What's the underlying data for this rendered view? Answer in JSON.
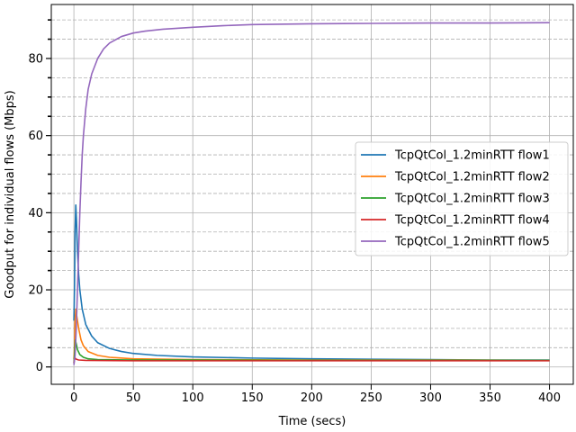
{
  "chart_data": {
    "type": "line",
    "title": "",
    "xlabel": "Time (secs)",
    "ylabel": "Goodput for individual flows (Mbps)",
    "xlim": [
      -19,
      420
    ],
    "ylim": [
      -4.5,
      94
    ],
    "x_ticks": [
      0,
      50,
      100,
      150,
      200,
      250,
      300,
      350,
      400
    ],
    "y_ticks": [
      0,
      20,
      40,
      60,
      80
    ],
    "y_minor_ticks": [
      5,
      10,
      15,
      25,
      30,
      35,
      45,
      50,
      55,
      65,
      70,
      75,
      85,
      90
    ],
    "grid": true,
    "legend_position": "center-right",
    "series": [
      {
        "name": "TcpQtCol_1.2minRTT flow1",
        "color": "#1f77b4",
        "points": [
          [
            0,
            12
          ],
          [
            0.5,
            20
          ],
          [
            1,
            35
          ],
          [
            1.6,
            42
          ],
          [
            2.2,
            38
          ],
          [
            3,
            30
          ],
          [
            4,
            24
          ],
          [
            5,
            20
          ],
          [
            7,
            15
          ],
          [
            10,
            11
          ],
          [
            15,
            8
          ],
          [
            20,
            6.3
          ],
          [
            30,
            4.8
          ],
          [
            40,
            4
          ],
          [
            50,
            3.5
          ],
          [
            70,
            3
          ],
          [
            100,
            2.6
          ],
          [
            150,
            2.3
          ],
          [
            200,
            2.1
          ],
          [
            250,
            2
          ],
          [
            300,
            1.9
          ],
          [
            350,
            1.8
          ],
          [
            400,
            1.8
          ]
        ]
      },
      {
        "name": "TcpQtCol_1.2minRTT flow2",
        "color": "#ff7f0e",
        "points": [
          [
            0,
            2
          ],
          [
            0.5,
            5
          ],
          [
            1,
            12
          ],
          [
            1.6,
            15
          ],
          [
            2.5,
            13
          ],
          [
            4,
            10
          ],
          [
            6,
            7
          ],
          [
            8,
            5.5
          ],
          [
            12,
            4
          ],
          [
            20,
            3
          ],
          [
            30,
            2.5
          ],
          [
            50,
            2.1
          ],
          [
            100,
            1.9
          ],
          [
            200,
            1.8
          ],
          [
            300,
            1.8
          ],
          [
            400,
            1.7
          ]
        ]
      },
      {
        "name": "TcpQtCol_1.2minRTT flow3",
        "color": "#2ca02c",
        "points": [
          [
            0,
            1
          ],
          [
            0.7,
            4
          ],
          [
            1.2,
            7
          ],
          [
            2,
            6
          ],
          [
            3,
            4.5
          ],
          [
            5,
            3.2
          ],
          [
            8,
            2.5
          ],
          [
            12,
            2.1
          ],
          [
            20,
            1.9
          ],
          [
            50,
            1.8
          ],
          [
            100,
            1.8
          ],
          [
            200,
            1.7
          ],
          [
            400,
            1.7
          ]
        ]
      },
      {
        "name": "TcpQtCol_1.2minRTT flow4",
        "color": "#d62728",
        "points": [
          [
            0,
            1
          ],
          [
            0.6,
            2
          ],
          [
            1,
            2.3
          ],
          [
            2,
            2
          ],
          [
            4,
            1.8
          ],
          [
            10,
            1.7
          ],
          [
            50,
            1.6
          ],
          [
            100,
            1.6
          ],
          [
            200,
            1.6
          ],
          [
            300,
            1.6
          ],
          [
            400,
            1.6
          ]
        ]
      },
      {
        "name": "TcpQtCol_1.2minRTT flow5",
        "color": "#9467bd",
        "points": [
          [
            0,
            0.5
          ],
          [
            1,
            3
          ],
          [
            2,
            10
          ],
          [
            3,
            20
          ],
          [
            4,
            30
          ],
          [
            5,
            40
          ],
          [
            6,
            48
          ],
          [
            7,
            55
          ],
          [
            8,
            60
          ],
          [
            10,
            67
          ],
          [
            12,
            72
          ],
          [
            15,
            76
          ],
          [
            20,
            80
          ],
          [
            25,
            82.5
          ],
          [
            30,
            84
          ],
          [
            40,
            85.7
          ],
          [
            50,
            86.6
          ],
          [
            60,
            87.1
          ],
          [
            75,
            87.6
          ],
          [
            100,
            88.1
          ],
          [
            125,
            88.5
          ],
          [
            150,
            88.8
          ],
          [
            200,
            89
          ],
          [
            250,
            89.1
          ],
          [
            300,
            89.2
          ],
          [
            350,
            89.2
          ],
          [
            400,
            89.3
          ]
        ]
      }
    ]
  }
}
